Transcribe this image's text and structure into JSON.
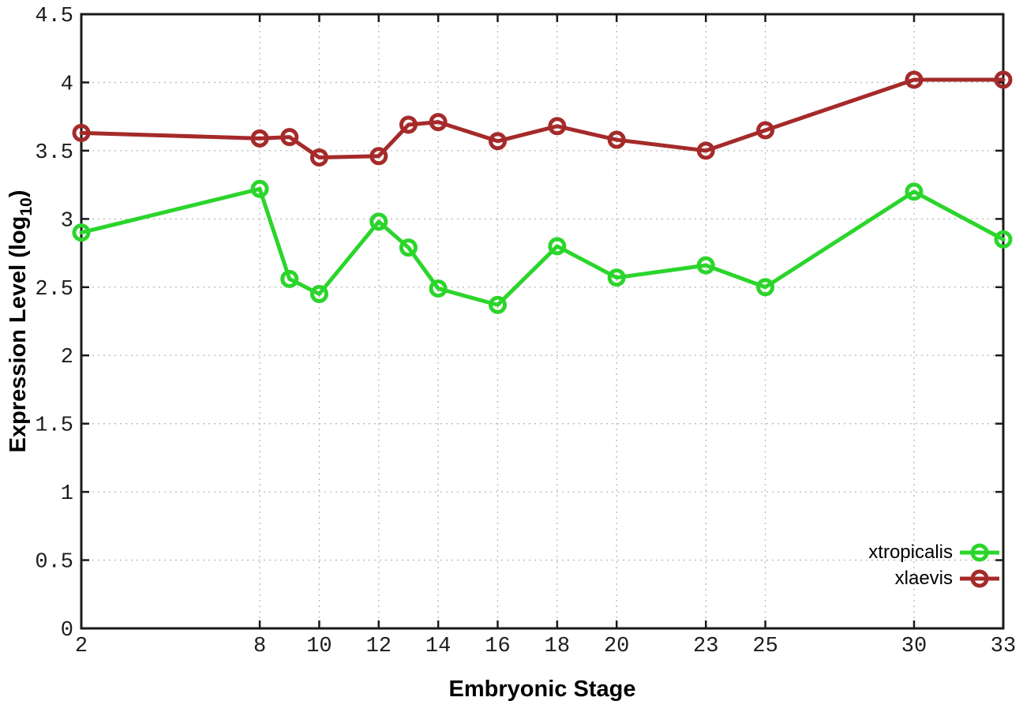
{
  "chart_data": {
    "type": "line",
    "title": "",
    "xlabel": "Embryonic Stage",
    "ylabel": "Expression Level (log10)",
    "ylabel_parts": {
      "main": "Expression Level (log",
      "sub": "10",
      "end": ")"
    },
    "xlim": [
      2,
      33
    ],
    "ylim": [
      0,
      4.5
    ],
    "grid": true,
    "grid_style": "dotted",
    "legend_position": "bottom-right",
    "marker": "open-circle",
    "background_color": "#ffffff",
    "grid_color": "#b8b8b8",
    "axis_color": "#1a1a1a",
    "xtick_values": [
      2,
      8,
      10,
      12,
      14,
      16,
      18,
      20,
      23,
      25,
      30,
      33
    ],
    "xtick_labels": [
      "2",
      "8",
      "10",
      "12",
      "14",
      "16",
      "18",
      "20",
      "23",
      "25",
      "30",
      "33"
    ],
    "ytick_values": [
      0,
      0.5,
      1,
      1.5,
      2,
      2.5,
      3,
      3.5,
      4,
      4.5
    ],
    "ytick_labels": [
      "0",
      "0.5",
      "1",
      "1.5",
      "2",
      "2.5",
      "3",
      "3.5",
      "4",
      "4.5"
    ],
    "x": [
      2,
      8,
      9,
      10,
      12,
      13,
      14,
      16,
      18,
      20,
      23,
      25,
      30,
      33
    ],
    "series": [
      {
        "name": "xtropicalis",
        "color": "#2bd52b",
        "values": [
          2.9,
          3.22,
          2.56,
          2.45,
          2.98,
          2.79,
          2.49,
          2.37,
          2.8,
          2.57,
          2.66,
          2.5,
          3.2,
          2.85
        ]
      },
      {
        "name": "xlaevis",
        "color": "#a52a2a",
        "values": [
          3.63,
          3.59,
          3.6,
          3.45,
          3.46,
          3.69,
          3.71,
          3.57,
          3.68,
          3.58,
          3.5,
          3.65,
          4.02,
          4.02
        ]
      }
    ]
  }
}
